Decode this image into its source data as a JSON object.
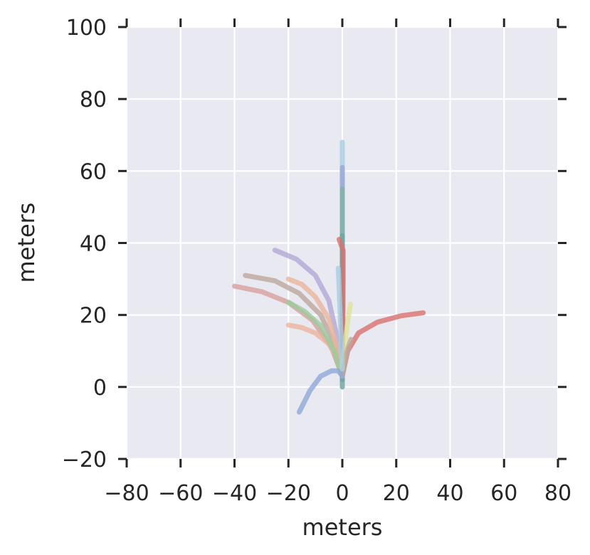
{
  "chart_data": {
    "type": "line",
    "title": "",
    "xlabel": "meters",
    "ylabel": "meters",
    "xlim": [
      -80,
      80
    ],
    "ylim": [
      -20,
      100
    ],
    "xticks": [
      -80,
      -60,
      -40,
      -20,
      0,
      20,
      40,
      60,
      80
    ],
    "yticks": [
      -20,
      0,
      20,
      40,
      60,
      80,
      100
    ],
    "xtick_labels": [
      "−80",
      "−60",
      "−40",
      "−20",
      "0",
      "20",
      "40",
      "60",
      "80"
    ],
    "ytick_labels": [
      "−20",
      "0",
      "20",
      "40",
      "60",
      "80",
      "100"
    ],
    "grid": true,
    "legend": "none",
    "series": [
      {
        "color": "#a6cee3",
        "x": [
          0,
          0,
          0,
          0,
          0,
          0
        ],
        "y": [
          0,
          15,
          30,
          45,
          58,
          68
        ]
      },
      {
        "color": "#9aa6d8",
        "x": [
          0,
          0,
          0,
          0,
          0
        ],
        "y": [
          0,
          15,
          30,
          45,
          61
        ]
      },
      {
        "color": "#7fb3a5",
        "x": [
          0,
          0,
          0,
          0
        ],
        "y": [
          0,
          18,
          36,
          55
        ]
      },
      {
        "color": "#6aa5a5",
        "x": [
          0,
          0,
          0,
          0
        ],
        "y": [
          2,
          15,
          30,
          42
        ]
      },
      {
        "color": "#d9706d",
        "x": [
          0,
          0.2,
          0.3,
          0.3,
          -1.2
        ],
        "y": [
          5,
          18,
          30,
          38,
          41
        ]
      },
      {
        "color": "#d9706d",
        "x": [
          0,
          2,
          6,
          13,
          22,
          30
        ],
        "y": [
          3,
          10,
          15,
          18,
          19.8,
          20.6
        ]
      },
      {
        "color": "#b1a7d6",
        "x": [
          0,
          -2,
          -5,
          -10,
          -17,
          -25
        ],
        "y": [
          3,
          14,
          24,
          31,
          35.5,
          38
        ]
      },
      {
        "color": "#bca79e",
        "x": [
          0,
          -3,
          -8,
          -16,
          -25,
          -36
        ],
        "y": [
          3,
          12,
          20,
          26,
          29.5,
          31
        ]
      },
      {
        "color": "#d7a09e",
        "x": [
          0,
          -4,
          -11,
          -20,
          -30,
          -40
        ],
        "y": [
          3,
          11,
          18.5,
          23.5,
          26.5,
          28
        ]
      },
      {
        "color": "#eab49c",
        "x": [
          0,
          -2,
          -5,
          -10,
          -15,
          -20
        ],
        "y": [
          3,
          11,
          19,
          25,
          28.5,
          30
        ]
      },
      {
        "color": "#eab49c",
        "x": [
          0,
          -2,
          -5,
          -10,
          -15,
          -20
        ],
        "y": [
          3,
          8,
          12,
          15,
          16.5,
          17.2
        ]
      },
      {
        "color": "#9bcb9b",
        "x": [
          0,
          -3,
          -8,
          -14,
          -20
        ],
        "y": [
          3,
          10,
          17,
          21,
          23.5
        ]
      },
      {
        "color": "#dfe39b",
        "x": [
          0,
          1,
          2,
          3
        ],
        "y": [
          5,
          12,
          18,
          23
        ]
      },
      {
        "color": "#bca79e",
        "x": [
          0,
          1,
          2,
          3.2
        ],
        "y": [
          3,
          7,
          10.5,
          13.2
        ]
      },
      {
        "color": "#8fa8d8",
        "x": [
          0,
          -1.5,
          -4,
          -8,
          -12,
          -16
        ],
        "y": [
          3,
          4.5,
          4.5,
          3,
          -1,
          -7
        ]
      },
      {
        "color": "#a6cee3",
        "x": [
          0,
          -0.8,
          -1.5
        ],
        "y": [
          5,
          20,
          33
        ]
      }
    ]
  }
}
